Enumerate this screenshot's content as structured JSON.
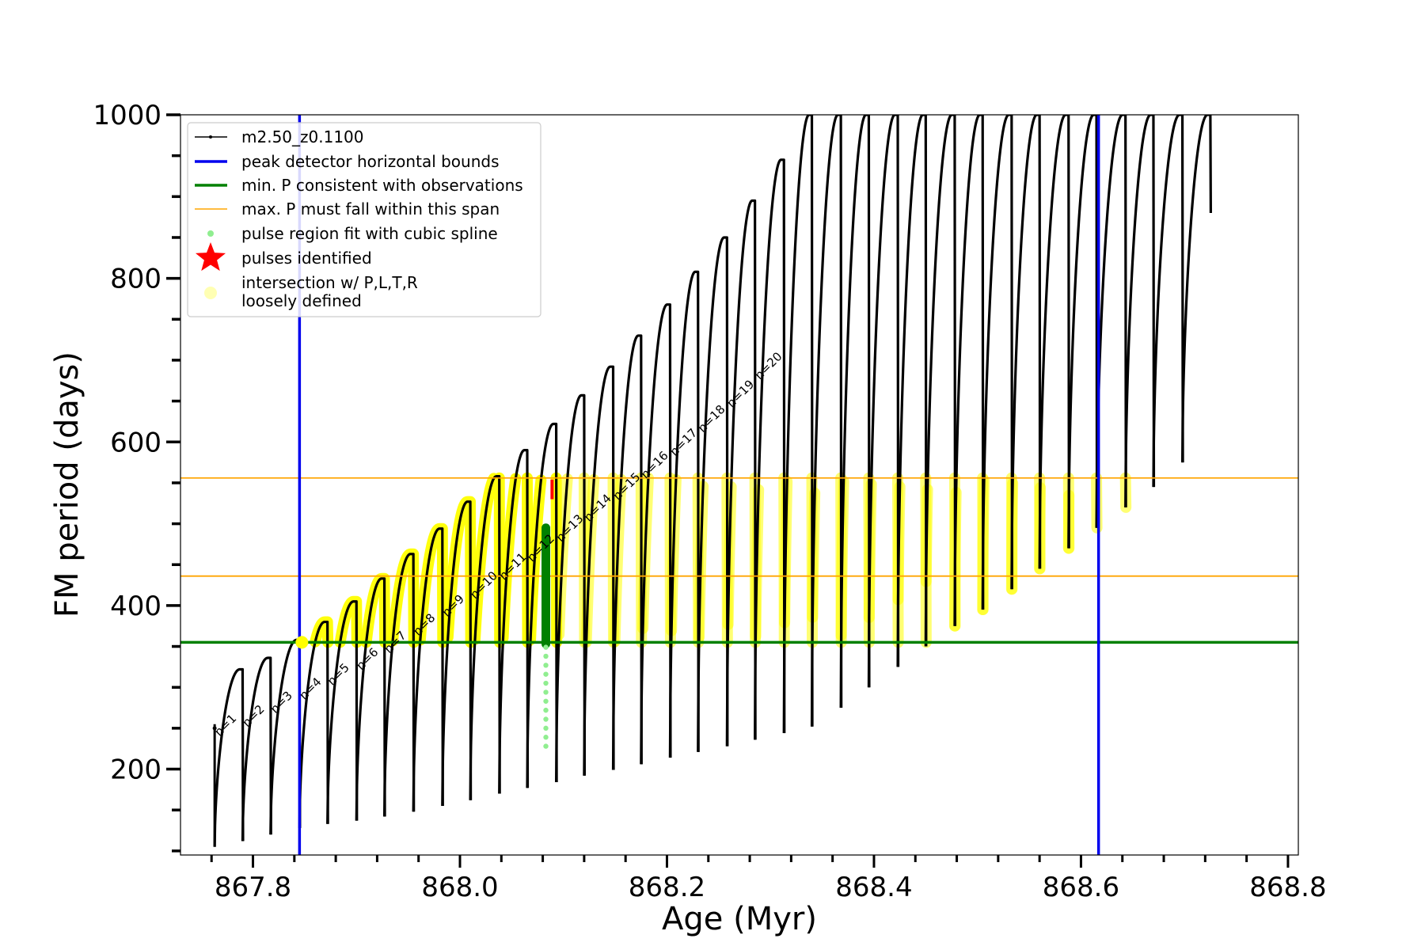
{
  "chart_data": {
    "type": "line",
    "xlabel": "Age (Myr)",
    "ylabel": "FM period (days)",
    "xlim": [
      867.73,
      868.81
    ],
    "ylim": [
      95,
      1000
    ],
    "x_ticks": [
      {
        "value": 867.8,
        "label": "867.8"
      },
      {
        "value": 868.0,
        "label": "868.0"
      },
      {
        "value": 868.2,
        "label": "868.2"
      },
      {
        "value": 868.4,
        "label": "868.4"
      },
      {
        "value": 868.6,
        "label": "868.6"
      },
      {
        "value": 868.8,
        "label": "868.8"
      }
    ],
    "y_ticks": [
      {
        "value": 200,
        "label": "200"
      },
      {
        "value": 400,
        "label": "400"
      },
      {
        "value": 600,
        "label": "600"
      },
      {
        "value": 800,
        "label": "800"
      },
      {
        "value": 1000,
        "label": "1000"
      }
    ],
    "x_minor_step": 0.04,
    "y_minor_step": 50,
    "legend_position": "top-left",
    "colors": {
      "track": "#000000",
      "bounds": "#0000ee",
      "min_period": "#008000",
      "max_period": "#ffa500",
      "spline": "#90ee90",
      "pulse": "#ff0000",
      "intersection": "#ffff00",
      "intersection_legend": "#ffffb3"
    },
    "legend": [
      {
        "label": "m2.50_z0.1100",
        "kind": "line-marker",
        "color": "#000000"
      },
      {
        "label": "peak detector horizontal bounds",
        "kind": "line",
        "color": "#0000ee"
      },
      {
        "label": "min. P consistent with observations",
        "kind": "line",
        "color": "#008000"
      },
      {
        "label": "max. P must fall within this span",
        "kind": "thin-line",
        "color": "#ffa500"
      },
      {
        "label": "pulse region fit with cubic spline",
        "kind": "dot",
        "color": "#90ee90"
      },
      {
        "label": "pulses identified",
        "kind": "star",
        "color": "#ff0000"
      },
      {
        "label": "intersection w/ P,L,T,R",
        "label2": "loosely defined",
        "kind": "big-dot",
        "color": "#ffffb3"
      }
    ],
    "vertical_bounds": [
      867.845,
      868.617
    ],
    "min_period": 355,
    "max_period_span": [
      436,
      556
    ],
    "cycles": [
      {
        "start": 867.763,
        "end": 867.79,
        "p_start": 105,
        "p_peak": 322,
        "label": "n=1"
      },
      {
        "start": 867.79,
        "end": 867.817,
        "p_start": 112,
        "p_peak": 336,
        "label": "n=2"
      },
      {
        "start": 867.817,
        "end": 867.845,
        "p_start": 120,
        "p_peak": 358,
        "label": "n=3"
      },
      {
        "start": 867.845,
        "end": 867.872,
        "p_start": 128,
        "p_peak": 380,
        "label": "n=4"
      },
      {
        "start": 867.872,
        "end": 867.9,
        "p_start": 133,
        "p_peak": 405,
        "label": "n=5"
      },
      {
        "start": 867.9,
        "end": 867.927,
        "p_start": 137,
        "p_peak": 433,
        "label": "n=6"
      },
      {
        "start": 867.927,
        "end": 867.955,
        "p_start": 142,
        "p_peak": 463,
        "label": "n=7"
      },
      {
        "start": 867.955,
        "end": 867.983,
        "p_start": 148,
        "p_peak": 494,
        "label": "n=8"
      },
      {
        "start": 867.983,
        "end": 868.01,
        "p_start": 155,
        "p_peak": 527,
        "label": "n=9"
      },
      {
        "start": 868.01,
        "end": 868.038,
        "p_start": 162,
        "p_peak": 558,
        "label": "n=10"
      },
      {
        "start": 868.038,
        "end": 868.065,
        "p_start": 170,
        "p_peak": 590,
        "label": "n=11"
      },
      {
        "start": 868.065,
        "end": 868.093,
        "p_start": 177,
        "p_peak": 622,
        "label": "n=12"
      },
      {
        "start": 868.093,
        "end": 868.12,
        "p_start": 184,
        "p_peak": 657,
        "label": "n=13"
      },
      {
        "start": 868.12,
        "end": 868.148,
        "p_start": 192,
        "p_peak": 692,
        "label": "n=14"
      },
      {
        "start": 868.148,
        "end": 868.175,
        "p_start": 199,
        "p_peak": 730,
        "label": "n=15"
      },
      {
        "start": 868.175,
        "end": 868.203,
        "p_start": 206,
        "p_peak": 768,
        "label": "n=16"
      },
      {
        "start": 868.203,
        "end": 868.23,
        "p_start": 214,
        "p_peak": 808,
        "label": "n=17"
      },
      {
        "start": 868.23,
        "end": 868.258,
        "p_start": 221,
        "p_peak": 850,
        "label": "n=18"
      },
      {
        "start": 868.258,
        "end": 868.285,
        "p_start": 228,
        "p_peak": 895,
        "label": "n=19"
      },
      {
        "start": 868.285,
        "end": 868.313,
        "p_start": 236,
        "p_peak": 945,
        "label": "n=20"
      },
      {
        "start": 868.313,
        "end": 868.34,
        "p_start": 244,
        "p_peak": 1000,
        "label": ""
      },
      {
        "start": 868.34,
        "end": 868.368,
        "p_start": 252,
        "p_peak": 1000,
        "label": ""
      },
      {
        "start": 868.368,
        "end": 868.395,
        "p_start": 275,
        "p_peak": 1000,
        "label": ""
      },
      {
        "start": 868.395,
        "end": 868.423,
        "p_start": 300,
        "p_peak": 1000,
        "label": ""
      },
      {
        "start": 868.423,
        "end": 868.45,
        "p_start": 325,
        "p_peak": 1000,
        "label": ""
      },
      {
        "start": 868.45,
        "end": 868.478,
        "p_start": 350,
        "p_peak": 1000,
        "label": ""
      },
      {
        "start": 868.478,
        "end": 868.505,
        "p_start": 375,
        "p_peak": 1000,
        "label": ""
      },
      {
        "start": 868.505,
        "end": 868.533,
        "p_start": 395,
        "p_peak": 1000,
        "label": ""
      },
      {
        "start": 868.533,
        "end": 868.56,
        "p_start": 420,
        "p_peak": 1000,
        "label": ""
      },
      {
        "start": 868.56,
        "end": 868.588,
        "p_start": 445,
        "p_peak": 1000,
        "label": ""
      },
      {
        "start": 868.588,
        "end": 868.615,
        "p_start": 470,
        "p_peak": 1000,
        "label": ""
      },
      {
        "start": 868.615,
        "end": 868.643,
        "p_start": 495,
        "p_peak": 1000,
        "label": ""
      },
      {
        "start": 868.643,
        "end": 868.67,
        "p_start": 520,
        "p_peak": 1000,
        "label": ""
      },
      {
        "start": 868.67,
        "end": 868.698,
        "p_start": 545,
        "p_peak": 1000,
        "label": ""
      },
      {
        "start": 868.698,
        "end": 868.725,
        "p_start": 575,
        "p_peak": 1000,
        "label": ""
      }
    ],
    "track_end": {
      "x": 868.725,
      "p_end": 880
    },
    "spline_points": {
      "x": 868.083,
      "p_min": 228,
      "p_max": 495
    },
    "pulses_identified": [
      {
        "x": 868.089,
        "p": 542
      }
    ]
  }
}
